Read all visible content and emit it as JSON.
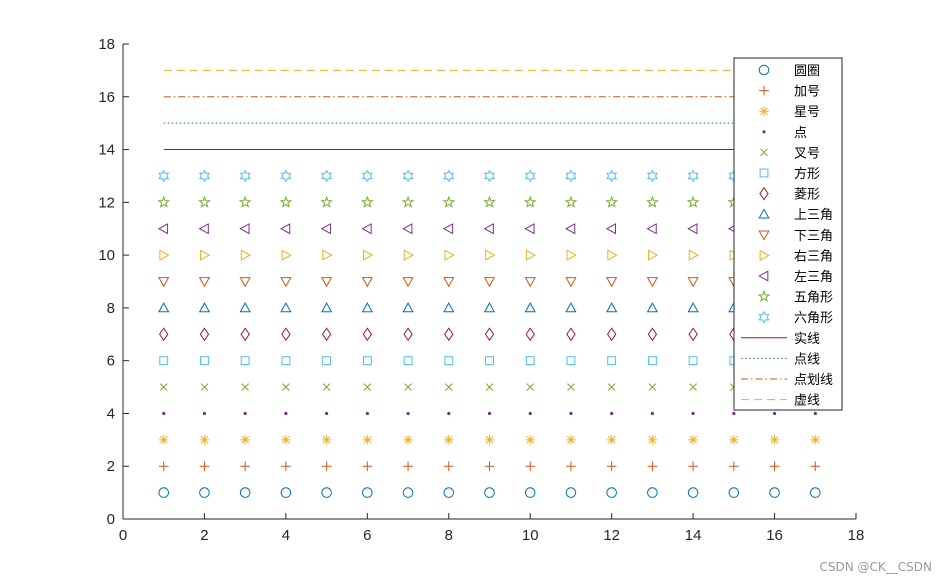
{
  "chart_data": {
    "type": "scatter",
    "xlim": [
      0,
      18
    ],
    "ylim": [
      0,
      18
    ],
    "xticks": [
      0,
      2,
      4,
      6,
      8,
      10,
      12,
      14,
      16,
      18
    ],
    "yticks": [
      0,
      2,
      4,
      6,
      8,
      10,
      12,
      14,
      16,
      18
    ],
    "grid": false,
    "legend_position": "top-right",
    "x": [
      1,
      2,
      3,
      4,
      5,
      6,
      7,
      8,
      9,
      10,
      11,
      12,
      13,
      14,
      15,
      16,
      17
    ],
    "series": [
      {
        "name": "圆圈",
        "kind": "marker",
        "marker": "circle",
        "y": 1,
        "color": "#0072BD"
      },
      {
        "name": "加号",
        "kind": "marker",
        "marker": "plus",
        "y": 2,
        "color": "#D95319"
      },
      {
        "name": "星号",
        "kind": "marker",
        "marker": "asterisk",
        "y": 3,
        "color": "#EDB120"
      },
      {
        "name": "点",
        "kind": "marker",
        "marker": "point",
        "y": 4,
        "color": "#7E2F8E"
      },
      {
        "name": "叉号",
        "kind": "marker",
        "marker": "cross",
        "y": 5,
        "color": "#77AC30"
      },
      {
        "name": "方形",
        "kind": "marker",
        "marker": "square",
        "y": 6,
        "color": "#4DBEEE"
      },
      {
        "name": "菱形",
        "kind": "marker",
        "marker": "diamond",
        "y": 7,
        "color": "#A2142F"
      },
      {
        "name": "上三角",
        "kind": "marker",
        "marker": "triangle-up",
        "y": 8,
        "color": "#0072BD"
      },
      {
        "name": "下三角",
        "kind": "marker",
        "marker": "triangle-down",
        "y": 9,
        "color": "#D95319"
      },
      {
        "name": "右三角",
        "kind": "marker",
        "marker": "triangle-right",
        "y": 10,
        "color": "#EDB120"
      },
      {
        "name": "左三角",
        "kind": "marker",
        "marker": "triangle-left",
        "y": 11,
        "color": "#7E2F8E"
      },
      {
        "name": "五角形",
        "kind": "marker",
        "marker": "pentagram",
        "y": 12,
        "color": "#77AC30"
      },
      {
        "name": "六角形",
        "kind": "marker",
        "marker": "hexagram",
        "y": 13,
        "color": "#4DBEEE"
      },
      {
        "name": "实线",
        "kind": "line",
        "style": "solid",
        "y": 14,
        "color": "#A2142F"
      },
      {
        "name": "点线",
        "kind": "line",
        "style": "dotted",
        "y": 15,
        "color": "#0072BD"
      },
      {
        "name": "点划线",
        "kind": "line",
        "style": "dashdot",
        "y": 16,
        "color": "#D95319"
      },
      {
        "name": "虚线",
        "kind": "line",
        "style": "dashed",
        "y": 17,
        "color": "#EDB120"
      }
    ]
  },
  "watermark": "CSDN @CK__CSDN"
}
